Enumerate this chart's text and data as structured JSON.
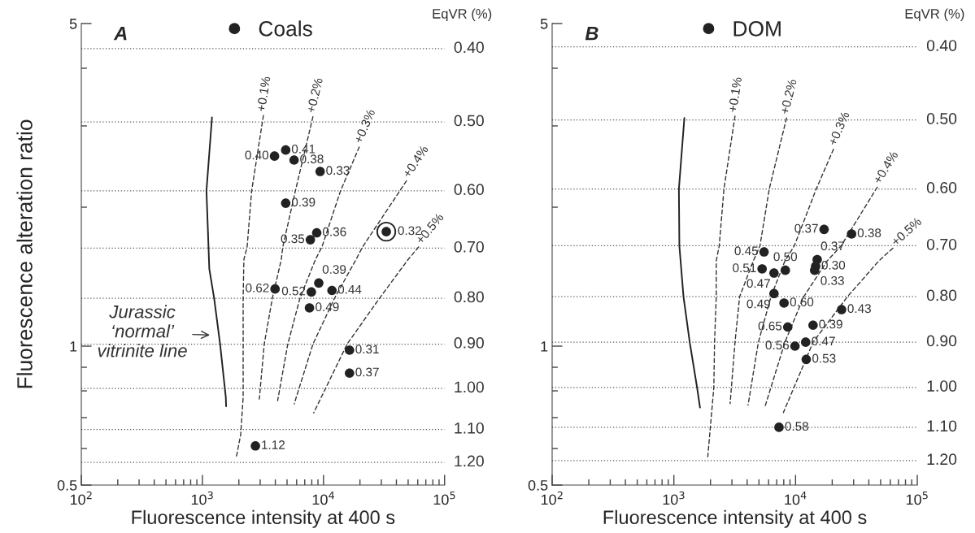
{
  "chart_data": [
    {
      "type": "scatter",
      "title": "A",
      "xlabel": "Fluorescence intensity at 400 s",
      "ylabel": "Fluorescence alteration ratio",
      "log": "xy",
      "legend": "top",
      "xlim": [
        100,
        100000
      ],
      "ylim": [
        0.5,
        5
      ],
      "xticks": [
        {
          "value": 100,
          "label": "10$^{2}$"
        },
        {
          "value": 200,
          "label": null
        },
        {
          "value": 300,
          "label": null
        },
        {
          "value": 400,
          "label": null
        },
        {
          "value": 500,
          "label": null
        },
        {
          "value": 600,
          "label": null
        },
        {
          "value": 700,
          "label": null
        },
        {
          "value": 800,
          "label": null
        },
        {
          "value": 900,
          "label": null
        },
        {
          "value": 1000,
          "label": "10$^{3}$"
        },
        {
          "value": 2000,
          "label": null
        },
        {
          "value": 3000,
          "label": null
        },
        {
          "value": 4000,
          "label": null
        },
        {
          "value": 5000,
          "label": null
        },
        {
          "value": 6000,
          "label": null
        },
        {
          "value": 7000,
          "label": null
        },
        {
          "value": 8000,
          "label": null
        },
        {
          "value": 9000,
          "label": null
        },
        {
          "value": 10000,
          "label": "10$^{4}$"
        },
        {
          "value": 20000,
          "label": null
        },
        {
          "value": 30000,
          "label": null
        },
        {
          "value": 40000,
          "label": null
        },
        {
          "value": 50000,
          "label": null
        },
        {
          "value": 60000,
          "label": null
        },
        {
          "value": 70000,
          "label": null
        },
        {
          "value": 80000,
          "label": null
        },
        {
          "value": 90000,
          "label": null
        },
        {
          "value": 100000,
          "label": "10$^{5}$"
        }
      ],
      "yticks": [
        0.5,
        {
          "value": 0.6,
          "label": null
        },
        {
          "value": 0.7,
          "label": null
        },
        {
          "value": 0.8,
          "label": null
        },
        {
          "value": 0.9,
          "label": null
        },
        1,
        {
          "value": 2,
          "label": null
        },
        {
          "value": 3,
          "label": null
        },
        {
          "value": 4,
          "label": null
        },
        5
      ],
      "ref_lines": [
        {
          "axis": "y",
          "value": 4.41,
          "color": "#555555",
          "line_style": "dotted"
        },
        {
          "axis": "y",
          "value": 3.06,
          "color": "#555555",
          "line_style": "dotted"
        },
        {
          "axis": "y",
          "value": 2.17,
          "color": "#555555",
          "line_style": "dotted"
        },
        {
          "axis": "y",
          "value": 1.63,
          "color": "#555555",
          "line_style": "dotted"
        },
        {
          "axis": "y",
          "value": 1.27,
          "color": "#555555",
          "line_style": "dotted"
        },
        {
          "axis": "y",
          "value": 1.01,
          "color": "#555555",
          "line_style": "dotted"
        },
        {
          "axis": "y",
          "value": 0.81,
          "color": "#555555",
          "line_style": "dotted"
        },
        {
          "axis": "y",
          "value": 0.66,
          "color": "#555555",
          "line_style": "dotted"
        },
        {
          "axis": "y",
          "value": 0.56,
          "color": "#555555",
          "line_style": "dotted"
        }
      ],
      "annotations": [
        {
          "text": "0.40",
          "x": 3940,
          "y": 2.58
        },
        {
          "text": "0.41",
          "x": 4875,
          "y": 2.66
        },
        {
          "text": "0.38",
          "x": 5715,
          "y": 2.53
        },
        {
          "text": "0.33",
          "x": 9380,
          "y": 2.39
        },
        {
          "text": "0.39",
          "x": 4875,
          "y": 2.04
        },
        {
          "text": "0.36",
          "x": 8790,
          "y": 1.76
        },
        {
          "text": "0.35",
          "x": 7790,
          "y": 1.7
        },
        {
          "text": "0.32",
          "x": 33000,
          "y": 1.77
        },
        {
          "text": "0.39",
          "x": 9140,
          "y": 1.37
        },
        {
          "text": "0.62",
          "x": 3980,
          "y": 1.33
        },
        {
          "text": "0.52",
          "x": 7940,
          "y": 1.31
        },
        {
          "text": "0.44",
          "x": 11750,
          "y": 1.32
        },
        {
          "text": "0.49",
          "x": 7660,
          "y": 1.21
        },
        {
          "text": "0.31",
          "x": 16400,
          "y": 0.98
        },
        {
          "text": "0.37",
          "x": 16400,
          "y": 0.874
        },
        {
          "text": "1.12",
          "x": 2740,
          "y": 0.608
        },
        "Jurassic\n‘normal’\nvitrinite line",
        "EqVR (%)",
        "0.40",
        "0.50",
        "0.60",
        "0.70",
        "0.80",
        "0.90",
        "1.00",
        "1.10",
        "1.20"
      ],
      "series": [
        {
          "name": "Coals",
          "color": "#222222",
          "marker": "circle",
          "x": [
            3940,
            4875,
            5715,
            9380,
            4875,
            8790,
            7790,
            33000,
            9140,
            3980,
            7940,
            11750,
            7660,
            16400,
            16400,
            2740
          ],
          "values": [
            2.58,
            2.66,
            2.53,
            2.39,
            2.04,
            1.76,
            1.7,
            1.77,
            1.37,
            1.33,
            1.31,
            1.32,
            1.21,
            0.98,
            0.874,
            0.608
          ]
        },
        {
          "type": "scatter",
          "color": "#222222",
          "marker": "circle",
          "x": [
            33000
          ],
          "values": [
            1.77
          ]
        },
        {
          "type": "line",
          "color": "#222222",
          "line_style": "solid",
          "x": [
            1200,
            1080,
            1140,
            1250,
            1400,
            1560,
            1570
          ],
          "values": [
            3.13,
            2.17,
            1.47,
            1.27,
            1.01,
            0.775,
            0.741
          ]
        },
        {
          "type": "line",
          "name": "+0.1%",
          "color": "#333333",
          "line_style": "dashed",
          "x": [
            3190,
            2550,
            2340,
            2200,
            2170,
            2170,
            2170,
            2070,
            1910
          ],
          "values": [
            3.16,
            2.17,
            1.64,
            1.54,
            1.27,
            1.01,
            0.775,
            0.643,
            0.576
          ]
        },
        {
          "type": "line",
          "name": "+0.2%",
          "color": "#333333",
          "line_style": "dashed",
          "x": [
            8180,
            5860,
            4610,
            4480,
            3780,
            3240,
            2950
          ],
          "values": [
            3.14,
            2.17,
            1.64,
            1.54,
            1.27,
            1.01,
            0.768
          ]
        },
        {
          "type": "line",
          "name": "+0.3%",
          "color": "#333333",
          "line_style": "dashed",
          "x": [
            19720,
            13830,
            9700,
            8580,
            6390,
            5070,
            4180
          ],
          "values": [
            2.7,
            2.17,
            1.64,
            1.54,
            1.27,
            1.01,
            0.762
          ]
        },
        {
          "type": "line",
          "name": "+0.4%",
          "color": "#333333",
          "line_style": "dashed",
          "x": [
            48400,
            21000,
            18550,
            12330,
            8180,
            5730
          ],
          "values": [
            2.28,
            1.64,
            1.54,
            1.27,
            1.01,
            0.75
          ]
        },
        {
          "type": "line",
          "name": "+0.5%",
          "color": "#333333",
          "line_style": "dashed",
          "x": [
            61000,
            49900,
            29000,
            15660,
            8300
          ],
          "values": [
            1.64,
            1.54,
            1.27,
            1.01,
            0.717
          ]
        }
      ]
    },
    {
      "type": "scatter",
      "title": "B",
      "xlabel": "Fluorescence intensity at 400 s",
      "log": "xy",
      "legend": "top",
      "xlim": [
        100,
        100000
      ],
      "ylim": [
        0.5,
        5
      ],
      "xticks": [
        {
          "value": 100,
          "label": "10$^{2}$"
        },
        {
          "value": 200,
          "label": null
        },
        {
          "value": 300,
          "label": null
        },
        {
          "value": 400,
          "label": null
        },
        {
          "value": 500,
          "label": null
        },
        {
          "value": 600,
          "label": null
        },
        {
          "value": 700,
          "label": null
        },
        {
          "value": 800,
          "label": null
        },
        {
          "value": 900,
          "label": null
        },
        {
          "value": 1000,
          "label": "10$^{3}$"
        },
        {
          "value": 2000,
          "label": null
        },
        {
          "value": 3000,
          "label": null
        },
        {
          "value": 4000,
          "label": null
        },
        {
          "value": 5000,
          "label": null
        },
        {
          "value": 6000,
          "label": null
        },
        {
          "value": 7000,
          "label": null
        },
        {
          "value": 8000,
          "label": null
        },
        {
          "value": 9000,
          "label": null
        },
        {
          "value": 10000,
          "label": "10$^{4}$"
        },
        {
          "value": 20000,
          "label": null
        },
        {
          "value": 30000,
          "label": null
        },
        {
          "value": 40000,
          "label": null
        },
        {
          "value": 50000,
          "label": null
        },
        {
          "value": 60000,
          "label": null
        },
        {
          "value": 70000,
          "label": null
        },
        {
          "value": 80000,
          "label": null
        },
        {
          "value": 90000,
          "label": null
        },
        {
          "value": 100000,
          "label": "10$^{5}$"
        }
      ],
      "yticks": [
        0.5,
        {
          "value": 0.6,
          "label": null
        },
        {
          "value": 0.7,
          "label": null
        },
        {
          "value": 0.8,
          "label": null
        },
        {
          "value": 0.9,
          "label": null
        },
        1,
        {
          "value": 2,
          "label": null
        },
        {
          "value": 3,
          "label": null
        },
        {
          "value": 4,
          "label": null
        },
        5
      ],
      "ref_lines": [
        {
          "axis": "y",
          "value": 4.45,
          "color": "#555555",
          "line_style": "dotted"
        },
        {
          "axis": "y",
          "value": 3.09,
          "color": "#555555",
          "line_style": "dotted"
        },
        {
          "axis": "y",
          "value": 2.19,
          "color": "#555555",
          "line_style": "dotted"
        },
        {
          "axis": "y",
          "value": 1.65,
          "color": "#555555",
          "line_style": "dotted"
        },
        {
          "axis": "y",
          "value": 1.28,
          "color": "#555555",
          "line_style": "dotted"
        },
        {
          "axis": "y",
          "value": 1.02,
          "color": "#555555",
          "line_style": "dotted"
        },
        {
          "axis": "y",
          "value": 0.814,
          "color": "#555555",
          "line_style": "dotted"
        },
        {
          "axis": "y",
          "value": 0.667,
          "color": "#555555",
          "line_style": "dotted"
        },
        {
          "axis": "y",
          "value": 0.565,
          "color": "#555555",
          "line_style": "dotted"
        }
      ],
      "annotations": [
        {
          "text": "0.37",
          "x": 17150,
          "y": 1.79
        },
        {
          "text": "0.38",
          "x": 28850,
          "y": 1.75
        },
        {
          "text": "0.45",
          "x": 5510,
          "y": 1.6
        },
        {
          "text": "0.37",
          "x": 15060,
          "y": 1.54
        },
        {
          "text": "0.30",
          "x": 14620,
          "y": 1.49
        },
        {
          "text": "0.33",
          "x": 14350,
          "y": 1.46
        },
        {
          "text": "0.51",
          "x": 5310,
          "y": 1.47
        },
        {
          "text": "0.50",
          "x": 8240,
          "y": 1.46
        },
        {
          "text": "0.47",
          "x": 6650,
          "y": 1.44
        },
        {
          "text": "0.49",
          "x": 6650,
          "y": 1.3
        },
        {
          "text": "0.60",
          "x": 8040,
          "y": 1.24
        },
        {
          "text": "0.43",
          "x": 23880,
          "y": 1.2
        },
        {
          "text": "0.65",
          "x": 8630,
          "y": 1.1
        },
        {
          "text": "0.39",
          "x": 13920,
          "y": 1.11
        },
        {
          "text": "0.56",
          "x": 9890,
          "y": 1.0
        },
        {
          "text": "0.47",
          "x": 12110,
          "y": 1.02
        },
        {
          "text": "0.53",
          "x": 12240,
          "y": 0.936
        },
        {
          "text": "0.58",
          "x": 7310,
          "y": 0.667
        },
        "EqVR (%)",
        "0.40",
        "0.50",
        "0.60",
        "0.70",
        "0.80",
        "0.90",
        "1.00",
        "1.10",
        "1.20"
      ],
      "series": [
        {
          "name": "DOM",
          "color": "#222222",
          "marker": "circle",
          "x": [
            17150,
            28850,
            5510,
            15060,
            14620,
            14350,
            5310,
            8240,
            6650,
            6650,
            8040,
            23880,
            8630,
            13920,
            9890,
            12110,
            12240,
            7310
          ],
          "values": [
            1.79,
            1.75,
            1.6,
            1.54,
            1.49,
            1.46,
            1.47,
            1.46,
            1.44,
            1.3,
            1.24,
            1.2,
            1.1,
            1.11,
            1.0,
            1.02,
            0.936,
            0.667
          ]
        },
        {
          "type": "line",
          "color": "#222222",
          "line_style": "solid",
          "x": [
            1220,
            1100,
            1110,
            1200,
            1350,
            1550,
            1640
          ],
          "values": [
            3.12,
            2.19,
            1.65,
            1.28,
            1.02,
            0.815,
            0.736
          ]
        },
        {
          "type": "line",
          "name": "+0.1%",
          "color": "#333333",
          "line_style": "dashed",
          "x": [
            3180,
            2580,
            2360,
            2230,
            2230,
            2160,
            2130,
            1900
          ],
          "values": [
            3.15,
            2.19,
            1.65,
            1.53,
            1.28,
            1.02,
            0.814,
            0.576
          ]
        },
        {
          "type": "line",
          "name": "+0.2%",
          "color": "#333333",
          "line_style": "dashed",
          "x": [
            8430,
            6080,
            5100,
            4500,
            3470,
            3180,
            2900
          ],
          "values": [
            3.12,
            2.19,
            1.65,
            1.53,
            1.28,
            1.02,
            0.751
          ]
        },
        {
          "type": "line",
          "name": "+0.3%",
          "color": "#333333",
          "line_style": "dashed",
          "x": [
            20470,
            14790,
            9770,
            8180,
            6280,
            4950,
            4070
          ],
          "values": [
            2.67,
            2.19,
            1.65,
            1.53,
            1.28,
            1.02,
            0.745
          ]
        },
        {
          "type": "line",
          "name": "+0.4%",
          "color": "#333333",
          "line_style": "dashed",
          "x": [
            46900,
            23700,
            18200,
            11670,
            8180,
            5610
          ],
          "values": [
            2.21,
            1.65,
            1.53,
            1.28,
            1.02,
            0.74
          ]
        },
        {
          "type": "line",
          "name": "+0.5%",
          "color": "#333333",
          "line_style": "dashed",
          "x": [
            63000,
            48300,
            26700,
            13930,
            7940
          ],
          "values": [
            1.63,
            1.53,
            1.28,
            1.02,
            0.718
          ]
        }
      ]
    }
  ]
}
